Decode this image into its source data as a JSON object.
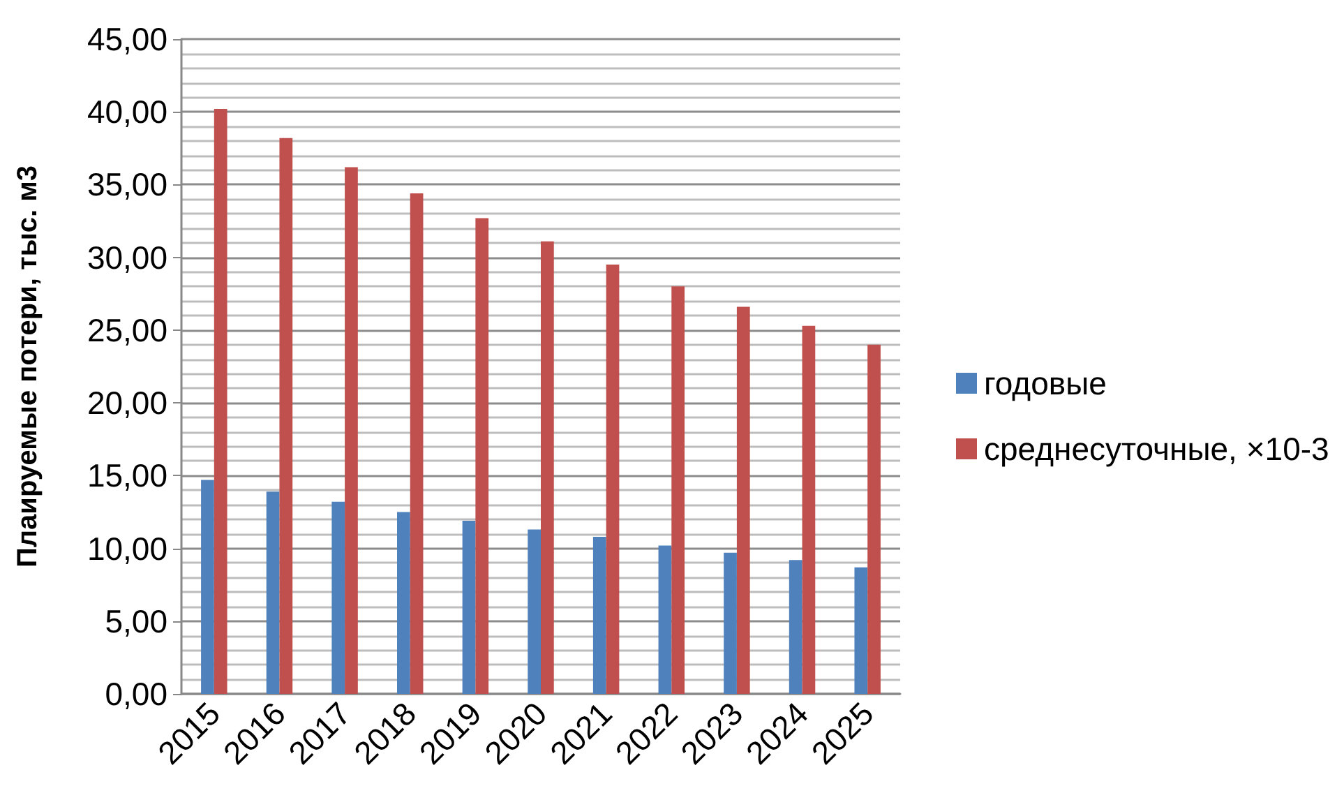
{
  "chart_data": {
    "type": "bar",
    "ylabel": "Плаируемые потери, тыс. м3",
    "categories": [
      "2015",
      "2016",
      "2017",
      "2018",
      "2019",
      "2020",
      "2021",
      "2022",
      "2023",
      "2024",
      "2025"
    ],
    "series": [
      {
        "name": "годовые",
        "color": "#4f81bd",
        "values": [
          14.7,
          13.9,
          13.2,
          12.5,
          11.9,
          11.3,
          10.8,
          10.2,
          9.7,
          9.2,
          8.7
        ]
      },
      {
        "name": "среднесуточные, ×10-3",
        "color": "#c0504d",
        "values": [
          40.2,
          38.2,
          36.2,
          34.4,
          32.7,
          31.1,
          29.5,
          28.0,
          26.6,
          25.3,
          24.0
        ]
      }
    ],
    "ylim": [
      0,
      45
    ],
    "yticks": [
      {
        "value": 0,
        "label": "0,00"
      },
      {
        "value": 5,
        "label": "5,00"
      },
      {
        "value": 10,
        "label": "10,00"
      },
      {
        "value": 15,
        "label": "15,00"
      },
      {
        "value": 20,
        "label": "20,00"
      },
      {
        "value": 25,
        "label": "25,00"
      },
      {
        "value": 30,
        "label": "30,00"
      },
      {
        "value": 35,
        "label": "35,00"
      },
      {
        "value": 40,
        "label": "40,00"
      },
      {
        "value": 45,
        "label": "45,00"
      }
    ],
    "grid": "y",
    "legend": "right"
  }
}
